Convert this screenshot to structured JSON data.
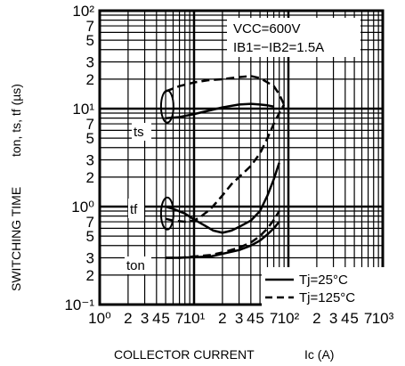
{
  "chart_data": {
    "type": "line",
    "xlabel": "COLLECTOR CURRENT",
    "xlabel_unit": "Ic (A)",
    "ylabel": "SWITCHING TIME",
    "ylabel_unit": "ton, ts, tf (µs)",
    "x_scale": "log",
    "y_scale": "log",
    "xlim": [
      1,
      1000
    ],
    "ylim": [
      0.1,
      100
    ],
    "grid": true,
    "x_tick_labels": [
      "10⁰",
      "2",
      "3",
      "4",
      "5",
      "7",
      "10¹",
      "2",
      "3",
      "4",
      "5",
      "7",
      "10²",
      "2",
      "3",
      "4",
      "5",
      "7",
      "10³"
    ],
    "y_tick_labels": [
      "10⁻¹",
      "2",
      "3",
      "5",
      "7",
      "10⁰",
      "2",
      "3",
      "5",
      "7",
      "10¹",
      "2",
      "3",
      "5",
      "7",
      "10²"
    ],
    "conditions": [
      "VCC=600V",
      "IB1=−IB2=1.5A"
    ],
    "legend": {
      "placement": "bottom-right",
      "entries": [
        {
          "label": "Tj=25°C",
          "style": "solid"
        },
        {
          "label": "Tj=125°C",
          "style": "dashed"
        }
      ]
    },
    "curve_labels": [
      "ts",
      "tf",
      "ton"
    ],
    "series": [
      {
        "name": "ts",
        "condition": "Tj=25°C",
        "style": "solid",
        "x": [
          5,
          7,
          10,
          14,
          20,
          30,
          40,
          50,
          60,
          70
        ],
        "y": [
          8.0,
          8.2,
          8.8,
          9.5,
          10.3,
          11.0,
          11.2,
          11.0,
          10.8,
          10.5
        ]
      },
      {
        "name": "ts",
        "condition": "Tj=125°C",
        "style": "dashed",
        "x": [
          5,
          7,
          10,
          14,
          20,
          30,
          40,
          50,
          60,
          70,
          80,
          90
        ],
        "y": [
          15.0,
          17.0,
          18.5,
          19.5,
          20.0,
          21.0,
          21.5,
          20.5,
          18.5,
          17.0,
          14.0,
          11.0
        ]
      },
      {
        "name": "tf",
        "condition": "Tj=25°C",
        "style": "solid",
        "x": [
          5,
          6,
          8,
          10,
          13,
          16,
          20,
          25,
          30,
          40,
          50,
          60,
          70,
          80
        ],
        "y": [
          1.0,
          0.95,
          0.85,
          0.74,
          0.64,
          0.57,
          0.54,
          0.57,
          0.62,
          0.72,
          0.9,
          1.3,
          1.9,
          2.8
        ]
      },
      {
        "name": "tf",
        "condition": "Tj=125°C",
        "style": "dashed",
        "x": [
          5,
          6,
          8,
          10,
          12,
          15,
          20,
          25,
          30,
          40,
          50,
          60,
          70,
          80,
          90
        ],
        "y": [
          0.75,
          0.72,
          0.7,
          0.72,
          0.8,
          0.95,
          1.3,
          1.7,
          2.0,
          2.6,
          3.5,
          5.0,
          7.0,
          9.0,
          11.0
        ]
      },
      {
        "name": "ton",
        "condition": "Tj=25°C",
        "style": "solid",
        "x": [
          5,
          7,
          10,
          15,
          20,
          30,
          40,
          50,
          60,
          70,
          80
        ],
        "y": [
          0.3,
          0.3,
          0.305,
          0.31,
          0.33,
          0.36,
          0.4,
          0.45,
          0.52,
          0.6,
          0.7
        ]
      },
      {
        "name": "ton",
        "condition": "Tj=125°C",
        "style": "dashed",
        "x": [
          5,
          7,
          10,
          15,
          20,
          30,
          40,
          50,
          60,
          70,
          80
        ],
        "y": [
          0.3,
          0.3,
          0.31,
          0.32,
          0.34,
          0.38,
          0.43,
          0.5,
          0.6,
          0.73,
          0.9
        ]
      }
    ]
  }
}
